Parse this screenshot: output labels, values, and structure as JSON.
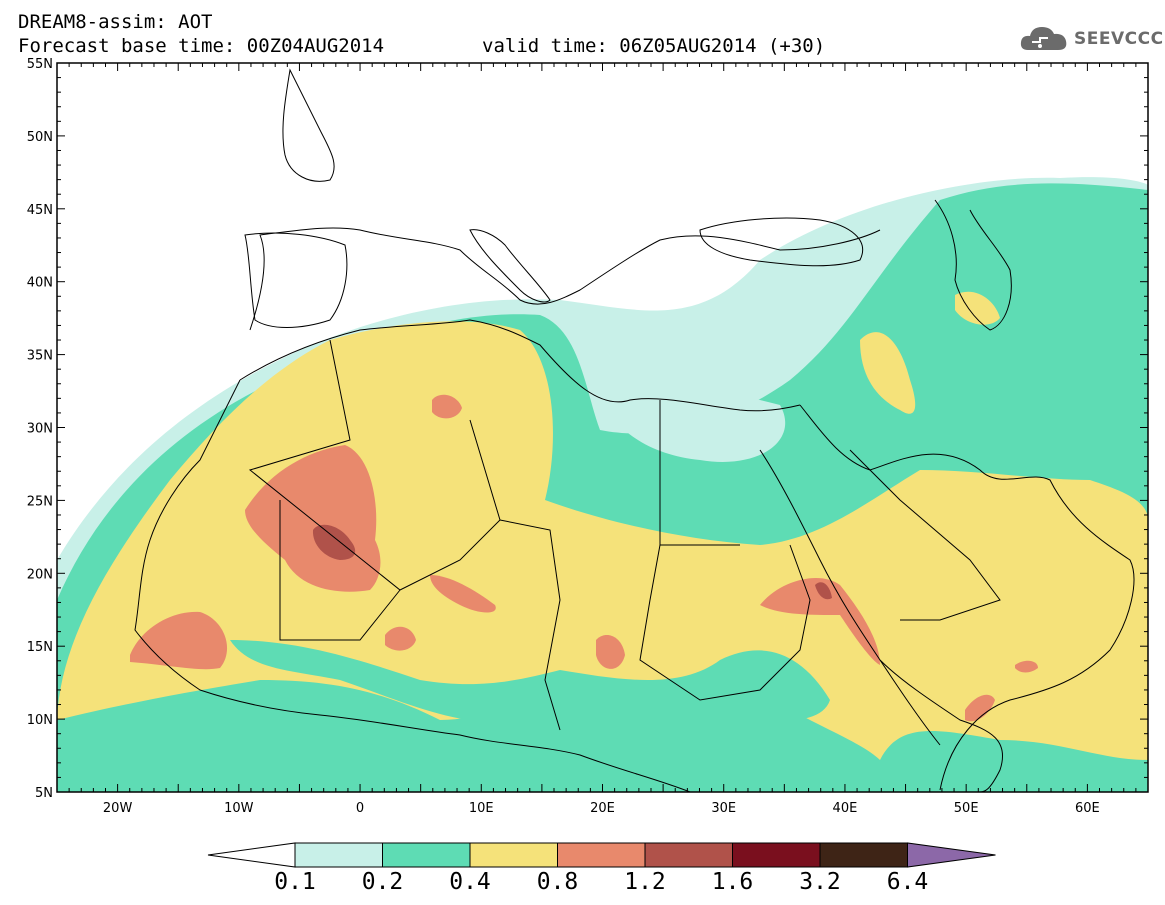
{
  "header": {
    "title_line1": "DREAM8-assim: AOT",
    "base_time": "Forecast base time: 00Z04AUG2014",
    "valid_time": "valid time: 06Z05AUG2014 (+30)"
  },
  "logo": {
    "text": "SEEVCCC",
    "icon": "cloud-icon"
  },
  "axes": {
    "lat_labels": [
      "55N",
      "50N",
      "45N",
      "40N",
      "35N",
      "30N",
      "25N",
      "20N",
      "15N",
      "10N",
      "5N"
    ],
    "lon_labels": [
      "20W",
      "10W",
      "0",
      "10E",
      "20E",
      "30E",
      "40E",
      "50E",
      "60E"
    ]
  },
  "colorbar": {
    "labels": [
      "0.1",
      "0.2",
      "0.4",
      "0.8",
      "1.2",
      "1.6",
      "3.2",
      "6.4"
    ],
    "colors": [
      "#ffffff",
      "#c8f0e8",
      "#5edcb4",
      "#f5e27a",
      "#e8896c",
      "#b0524a",
      "#7a0f1e",
      "#3e2416",
      "#8c68a8"
    ]
  },
  "map": {
    "variable": "AOT",
    "lon_range": [
      -25,
      65
    ],
    "lat_range": [
      5,
      55
    ],
    "fill_colors": {
      "light": "#c8f0e8",
      "green": "#5edcb4",
      "yellow": "#f5e27a",
      "orange": "#e8896c",
      "brown": "#b0524a"
    },
    "coastline_color": "#000000"
  }
}
